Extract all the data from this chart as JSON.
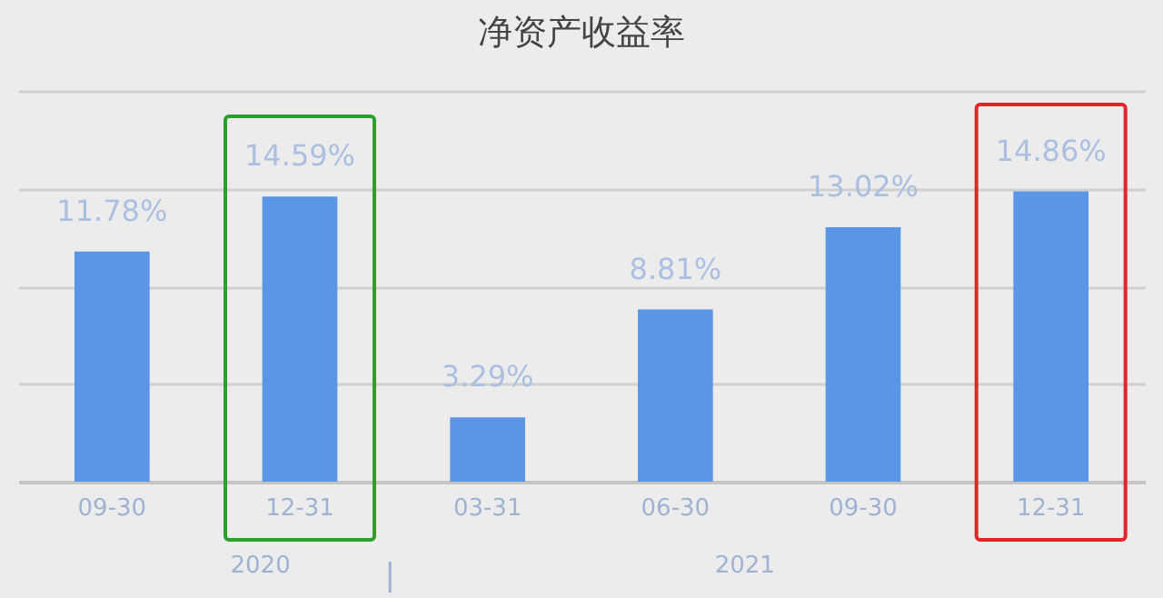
{
  "chart_data": {
    "type": "bar",
    "title": "净资产收益率",
    "categories": [
      "09-30",
      "12-31",
      "03-31",
      "06-30",
      "09-30",
      "12-31"
    ],
    "values": [
      11.78,
      14.59,
      3.29,
      8.81,
      13.02,
      14.86
    ],
    "value_labels": [
      "11.78%",
      "14.59%",
      "3.29%",
      "8.81%",
      "13.02%",
      "14.86%"
    ],
    "color": "#5b95e6",
    "ylim": [
      0,
      20
    ],
    "yticks": [
      {
        "value": 0,
        "label": null
      },
      {
        "value": 5,
        "label": null
      },
      {
        "value": 10,
        "label": null
      },
      {
        "value": 15,
        "label": null
      },
      {
        "value": 20,
        "label": null
      }
    ],
    "grid": "y",
    "tick_labels": "x",
    "annotations": [
      "2020",
      "2021"
    ]
  }
}
